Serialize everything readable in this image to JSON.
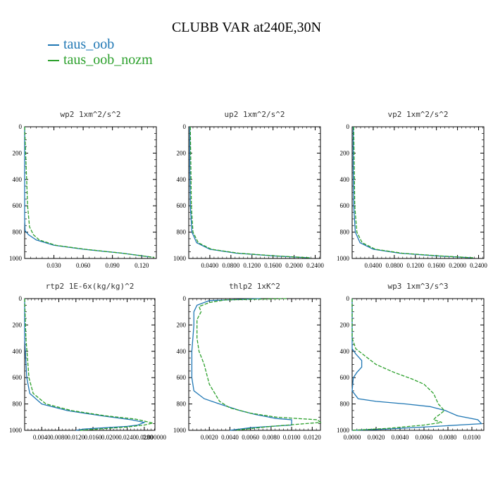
{
  "title": "CLUBB VAR at240E,30N",
  "colors": {
    "series_1": "#1f77b4",
    "series_2": "#2ca02c"
  },
  "legend": [
    {
      "label": "taus_oob",
      "color": "#1f77b4",
      "dash": "solid"
    },
    {
      "label": "taus_oob_nozm",
      "color": "#2ca02c",
      "dash": "dashed"
    }
  ],
  "chart_data": [
    {
      "id": "wp2",
      "type": "line",
      "title": "wp2  1xm^2/s^2",
      "xlim": [
        0,
        0.135
      ],
      "ylim": [
        1000,
        0
      ],
      "xticks": [
        0.03,
        0.06,
        0.09,
        0.12
      ],
      "xtick_labels": [
        "0.030",
        "0.060",
        "0.090",
        "0.120"
      ],
      "yticks": [
        0,
        200,
        400,
        600,
        800,
        1000
      ],
      "ytick_labels": [
        "0",
        "200",
        "400",
        "600",
        "800",
        "1000"
      ],
      "series": [
        {
          "name": "taus_oob",
          "points": [
            [
              0,
              0
            ],
            [
              0,
              400
            ],
            [
              0,
              700
            ],
            [
              0.0005,
              790
            ],
            [
              0.004,
              820
            ],
            [
              0.012,
              860
            ],
            [
              0.03,
              900
            ],
            [
              0.06,
              930
            ],
            [
              0.1,
              960
            ],
            [
              0.13,
              990
            ]
          ]
        },
        {
          "name": "taus_oob_nozm",
          "points": [
            [
              0,
              0
            ],
            [
              0.001,
              200
            ],
            [
              0.002,
              400
            ],
            [
              0.003,
              600
            ],
            [
              0.005,
              760
            ],
            [
              0.009,
              820
            ],
            [
              0.015,
              860
            ],
            [
              0.032,
              900
            ],
            [
              0.062,
              930
            ],
            [
              0.1,
              960
            ],
            [
              0.133,
              992
            ]
          ]
        }
      ]
    },
    {
      "id": "up2",
      "type": "line",
      "title": "up2  1xm^2/s^2",
      "xlim": [
        0,
        0.25
      ],
      "ylim": [
        1000,
        0
      ],
      "xticks": [
        0.04,
        0.08,
        0.12,
        0.16,
        0.2,
        0.24
      ],
      "xtick_labels": [
        "0.0400",
        "0.0800",
        "0.1200",
        "0.1600",
        "0.2000",
        "0.2400"
      ],
      "yticks": [
        0,
        200,
        400,
        600,
        800,
        1000
      ],
      "ytick_labels": [
        "0",
        "200",
        "400",
        "600",
        "800",
        "1000"
      ],
      "series": [
        {
          "name": "taus_oob",
          "points": [
            [
              0.002,
              0
            ],
            [
              0.002,
              300
            ],
            [
              0.003,
              600
            ],
            [
              0.006,
              800
            ],
            [
              0.015,
              880
            ],
            [
              0.04,
              930
            ],
            [
              0.09,
              960
            ],
            [
              0.16,
              980
            ],
            [
              0.23,
              995
            ]
          ]
        },
        {
          "name": "taus_oob_nozm",
          "points": [
            [
              0.003,
              0
            ],
            [
              0.004,
              300
            ],
            [
              0.005,
              600
            ],
            [
              0.008,
              800
            ],
            [
              0.018,
              880
            ],
            [
              0.043,
              930
            ],
            [
              0.095,
              960
            ],
            [
              0.165,
              980
            ],
            [
              0.232,
              995
            ]
          ]
        }
      ]
    },
    {
      "id": "vp2",
      "type": "line",
      "title": "vp2  1xm^2/s^2",
      "xlim": [
        0,
        0.25
      ],
      "ylim": [
        1000,
        0
      ],
      "xticks": [
        0.04,
        0.08,
        0.12,
        0.16,
        0.2,
        0.24
      ],
      "xtick_labels": [
        "0.0400",
        "0.0800",
        "0.1200",
        "0.1600",
        "0.2000",
        "0.2400"
      ],
      "yticks": [
        0,
        200,
        400,
        600,
        800,
        1000
      ],
      "ytick_labels": [
        "0",
        "200",
        "400",
        "600",
        "800",
        "1000"
      ],
      "series": [
        {
          "name": "taus_oob",
          "points": [
            [
              0.002,
              0
            ],
            [
              0.002,
              300
            ],
            [
              0.003,
              600
            ],
            [
              0.006,
              800
            ],
            [
              0.015,
              880
            ],
            [
              0.04,
              930
            ],
            [
              0.09,
              960
            ],
            [
              0.16,
              980
            ],
            [
              0.23,
              995
            ]
          ]
        },
        {
          "name": "taus_oob_nozm",
          "points": [
            [
              0.003,
              0
            ],
            [
              0.004,
              300
            ],
            [
              0.005,
              600
            ],
            [
              0.009,
              800
            ],
            [
              0.019,
              880
            ],
            [
              0.044,
              930
            ],
            [
              0.095,
              960
            ],
            [
              0.165,
              980
            ],
            [
              0.232,
              995
            ]
          ]
        }
      ]
    },
    {
      "id": "rtp2",
      "type": "line",
      "title": "rtp2  1E-6x(kg/kg)^2",
      "xlim": [
        0,
        0.0305
      ],
      "ylim": [
        1000,
        0
      ],
      "xticks": [
        0.004,
        0.008,
        0.012,
        0.016,
        0.02,
        0.024,
        0.028
      ],
      "xtick_labels": [
        "0.0040",
        "0.0080",
        "0.0120",
        "0.0160",
        "0.0200",
        "0.0240",
        "0.0280"
      ],
      "extra_xtick_label": "0.000000",
      "yticks": [
        0,
        200,
        400,
        600,
        800,
        1000
      ],
      "ytick_labels": [
        "0",
        "200",
        "400",
        "600",
        "800",
        "1000"
      ],
      "series": [
        {
          "name": "taus_oob",
          "points": [
            [
              0,
              0
            ],
            [
              0,
              300
            ],
            [
              0.0005,
              600
            ],
            [
              0.0012,
              720
            ],
            [
              0.004,
              800
            ],
            [
              0.01,
              850
            ],
            [
              0.018,
              890
            ],
            [
              0.025,
              920
            ],
            [
              0.028,
              940
            ],
            [
              0.0265,
              960
            ],
            [
              0.024,
              970
            ],
            [
              0.014,
              990
            ],
            [
              0.012,
              1000
            ]
          ]
        },
        {
          "name": "taus_oob_nozm",
          "points": [
            [
              0,
              0
            ],
            [
              0.0003,
              300
            ],
            [
              0.001,
              600
            ],
            [
              0.002,
              720
            ],
            [
              0.005,
              800
            ],
            [
              0.011,
              850
            ],
            [
              0.019,
              890
            ],
            [
              0.026,
              915
            ],
            [
              0.03,
              945
            ],
            [
              0.028,
              960
            ],
            [
              0.024,
              975
            ],
            [
              0.013,
              1000
            ]
          ]
        }
      ]
    },
    {
      "id": "thlp2",
      "type": "line",
      "title": "thlp2  1xK^2",
      "xlim": [
        0,
        0.0128
      ],
      "ylim": [
        1000,
        0
      ],
      "xticks": [
        0.002,
        0.004,
        0.006,
        0.008,
        0.01,
        0.012
      ],
      "xtick_labels": [
        "0.0020",
        "0.0040",
        "0.0060",
        "0.0080",
        "0.0100",
        "0.0120"
      ],
      "yticks": [
        0,
        200,
        400,
        600,
        800,
        1000
      ],
      "ytick_labels": [
        "0",
        "200",
        "400",
        "600",
        "800",
        "1000"
      ],
      "series": [
        {
          "name": "taus_oob",
          "points": [
            [
              0.007,
              0
            ],
            [
              0.002,
              15
            ],
            [
              0.0008,
              50
            ],
            [
              0.0005,
              100
            ],
            [
              0.0005,
              200
            ],
            [
              0.0003,
              400
            ],
            [
              0.0003,
              600
            ],
            [
              0.0005,
              700
            ],
            [
              0.0015,
              760
            ],
            [
              0.003,
              800
            ],
            [
              0.005,
              850
            ],
            [
              0.0065,
              880
            ],
            [
              0.0085,
              910
            ],
            [
              0.01,
              920
            ],
            [
              0.01,
              960
            ],
            [
              0.006,
              980
            ],
            [
              0.004,
              1000
            ]
          ]
        },
        {
          "name": "taus_oob_nozm",
          "points": [
            [
              0.0095,
              0
            ],
            [
              0.0035,
              10
            ],
            [
              0.002,
              30
            ],
            [
              0.001,
              60
            ],
            [
              0.0012,
              100
            ],
            [
              0.0008,
              160
            ],
            [
              0.0008,
              300
            ],
            [
              0.001,
              400
            ],
            [
              0.0015,
              500
            ],
            [
              0.002,
              650
            ],
            [
              0.003,
              780
            ],
            [
              0.004,
              830
            ],
            [
              0.006,
              870
            ],
            [
              0.0085,
              900
            ],
            [
              0.0125,
              920
            ],
            [
              0.0128,
              940
            ],
            [
              0.008,
              970
            ],
            [
              0.0045,
              1000
            ]
          ]
        }
      ]
    },
    {
      "id": "wp3",
      "type": "line",
      "title": "wp3  1xm^3/s^3",
      "xlim": [
        0,
        0.011
      ],
      "ylim": [
        1000,
        0
      ],
      "xticks": [
        0,
        0.002,
        0.004,
        0.006,
        0.008,
        0.01
      ],
      "xtick_labels": [
        "0.0000",
        "0.0020",
        "0.0040",
        "0.0060",
        "0.0080",
        "0.0100"
      ],
      "yticks": [
        0,
        200,
        400,
        600,
        800,
        1000
      ],
      "ytick_labels": [
        "0",
        "200",
        "400",
        "600",
        "800",
        "1000"
      ],
      "series": [
        {
          "name": "taus_oob",
          "points": [
            [
              0,
              0
            ],
            [
              0,
              380
            ],
            [
              0.0003,
              420
            ],
            [
              0.0008,
              470
            ],
            [
              0.0008,
              520
            ],
            [
              0.0004,
              560
            ],
            [
              0.0001,
              600
            ],
            [
              0,
              700
            ],
            [
              0.0005,
              760
            ],
            [
              0.002,
              780
            ],
            [
              0.0045,
              800
            ],
            [
              0.0065,
              820
            ],
            [
              0.0078,
              850
            ],
            [
              0.0088,
              890
            ],
            [
              0.0105,
              920
            ],
            [
              0.0108,
              950
            ],
            [
              0.007,
              970
            ],
            [
              0.003,
              990
            ],
            [
              0,
              1000
            ]
          ]
        },
        {
          "name": "taus_oob_nozm",
          "points": [
            [
              0,
              0
            ],
            [
              0,
              300
            ],
            [
              0.0003,
              380
            ],
            [
              0.001,
              430
            ],
            [
              0.002,
              500
            ],
            [
              0.0035,
              560
            ],
            [
              0.005,
              610
            ],
            [
              0.006,
              650
            ],
            [
              0.0068,
              720
            ],
            [
              0.0072,
              800
            ],
            [
              0.0075,
              830
            ],
            [
              0.0077,
              850
            ],
            [
              0.0073,
              880
            ],
            [
              0.007,
              900
            ],
            [
              0.0068,
              920
            ],
            [
              0.0075,
              940
            ],
            [
              0.006,
              960
            ],
            [
              0.003,
              985
            ],
            [
              0,
              1000
            ]
          ]
        }
      ]
    }
  ]
}
